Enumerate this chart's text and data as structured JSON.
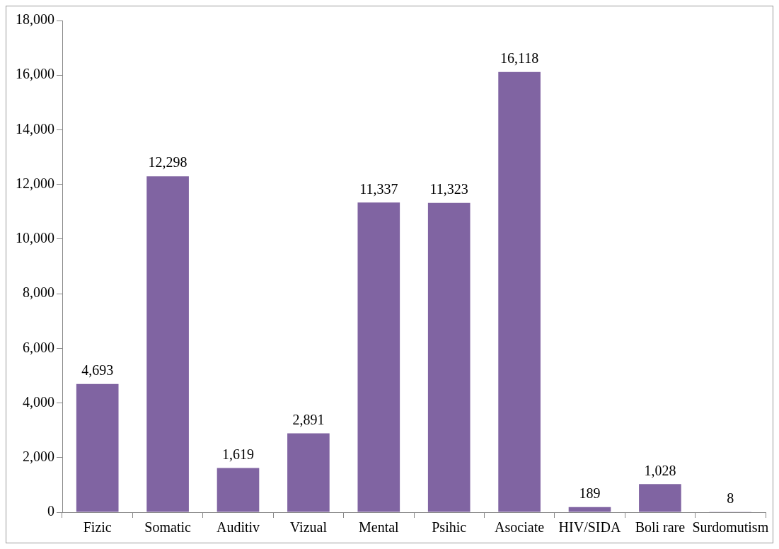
{
  "chart_data": {
    "type": "bar",
    "categories": [
      "Fizic",
      "Somatic",
      "Auditiv",
      "Vizual",
      "Mental",
      "Psihic",
      "Asociate",
      "HIV/SIDA",
      "Boli rare",
      "Surdomutism"
    ],
    "values": [
      4693,
      12298,
      1619,
      2891,
      11337,
      11323,
      16118,
      189,
      1028,
      8
    ],
    "color": "#8064a2",
    "ylim": [
      0,
      18000
    ],
    "yticks": [
      {
        "value": 0,
        "label": "0"
      },
      {
        "value": 2000,
        "label": "2,000"
      },
      {
        "value": 4000,
        "label": "4,000"
      },
      {
        "value": 6000,
        "label": "6,000"
      },
      {
        "value": 8000,
        "label": "8,000"
      },
      {
        "value": 10000,
        "label": "10,000"
      },
      {
        "value": 12000,
        "label": "12,000"
      },
      {
        "value": 14000,
        "label": "14,000"
      },
      {
        "value": 16000,
        "label": "16,000"
      },
      {
        "value": 18000,
        "label": "18,000"
      }
    ],
    "value_labels": [
      "4,693",
      "12,298",
      "1,619",
      "2,891",
      "11,337",
      "11,323",
      "16,118",
      "189",
      "1,028",
      "8"
    ],
    "grid": false,
    "legend": false
  }
}
